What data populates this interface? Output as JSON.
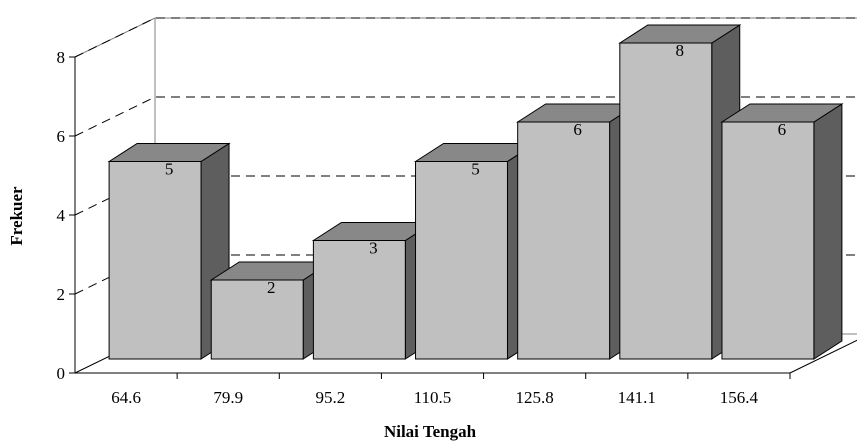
{
  "chart_data": {
    "type": "bar",
    "categories": [
      "64.6",
      "79.9",
      "95.2",
      "110.5",
      "125.8",
      "141.1",
      "156.4"
    ],
    "values": [
      5,
      2,
      3,
      5,
      6,
      8,
      6
    ],
    "data_labels": [
      "5",
      "2",
      "3",
      "5",
      "6",
      "8",
      "6"
    ],
    "xlabel": "Nilai Tengah",
    "ylabel": "Frekuer",
    "ylim": [
      0,
      8
    ],
    "yticks": [
      "0",
      "2",
      "4",
      "6",
      "8"
    ],
    "grid": true,
    "style": "3d-column",
    "colors": {
      "front": "#c0c0c0",
      "top": "#888888",
      "side": "#5e5e5e"
    }
  }
}
